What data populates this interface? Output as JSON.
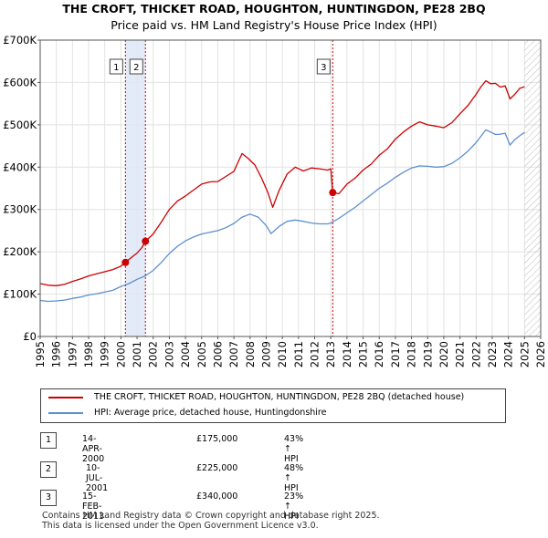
{
  "chart_data": {
    "type": "line",
    "title": "THE CROFT, THICKET ROAD, HOUGHTON, HUNTINGDON, PE28 2BQ",
    "subtitle": "Price paid vs. HM Land Registry's House Price Index (HPI)",
    "xlim": [
      1995,
      2026
    ],
    "ylim": [
      0,
      700000
    ],
    "x_ticks": [
      1995,
      1996,
      1997,
      1998,
      1999,
      2000,
      2001,
      2002,
      2003,
      2004,
      2005,
      2006,
      2007,
      2008,
      2009,
      2010,
      2011,
      2012,
      2013,
      2014,
      2015,
      2016,
      2017,
      2018,
      2019,
      2020,
      2021,
      2022,
      2023,
      2024,
      2025,
      2026
    ],
    "y_ticks": [
      {
        "value": 0,
        "label": "£0"
      },
      {
        "value": 100000,
        "label": "£100K"
      },
      {
        "value": 200000,
        "label": "£200K"
      },
      {
        "value": 300000,
        "label": "£300K"
      },
      {
        "value": 400000,
        "label": "£400K"
      },
      {
        "value": 500000,
        "label": "£500K"
      },
      {
        "value": 600000,
        "label": "£600K"
      },
      {
        "value": 700000,
        "label": "£700K"
      }
    ],
    "grid": true,
    "series": [
      {
        "name": "THE CROFT, THICKET ROAD, HOUGHTON, HUNTINGDON, PE28 2BQ (detached house)",
        "color": "#cc0000",
        "x": [
          1995.0,
          1995.5,
          1996.0,
          1996.5,
          1997.0,
          1997.5,
          1998.0,
          1998.5,
          1999.0,
          1999.5,
          2000.0,
          2000.28,
          2000.5,
          2001.0,
          2001.3,
          2001.52,
          2002.0,
          2002.5,
          2003.0,
          2003.5,
          2004.0,
          2004.5,
          2005.0,
          2005.5,
          2006.0,
          2006.5,
          2007.0,
          2007.5,
          2007.9,
          2008.3,
          2008.7,
          2009.1,
          2009.4,
          2009.8,
          2010.3,
          2010.8,
          2011.3,
          2011.8,
          2012.3,
          2012.8,
          2013.0,
          2013.12,
          2013.5,
          2014.0,
          2014.5,
          2015.0,
          2015.5,
          2016.0,
          2016.5,
          2017.0,
          2017.5,
          2018.0,
          2018.5,
          2019.0,
          2019.5,
          2020.0,
          2020.5,
          2021.0,
          2021.5,
          2022.0,
          2022.3,
          2022.6,
          2022.9,
          2023.2,
          2023.5,
          2023.8,
          2024.1,
          2024.4,
          2024.7,
          2025.0
        ],
        "values": [
          125000,
          121000,
          120000,
          123000,
          130000,
          136000,
          143000,
          148000,
          153000,
          158000,
          166000,
          175000,
          182000,
          197000,
          210000,
          225000,
          242000,
          270000,
          300000,
          320000,
          332000,
          346000,
          360000,
          365000,
          366000,
          378000,
          390000,
          432000,
          420000,
          405000,
          375000,
          340000,
          305000,
          345000,
          384000,
          400000,
          391000,
          398000,
          396000,
          393000,
          396000,
          340000,
          337000,
          360000,
          374000,
          393000,
          407000,
          428000,
          443000,
          466000,
          483000,
          497000,
          507000,
          500000,
          497000,
          493000,
          505000,
          526000,
          546000,
          572000,
          590000,
          604000,
          597000,
          598000,
          589000,
          592000,
          561000,
          572000,
          586000,
          590000
        ]
      },
      {
        "name": "HPI: Average price, detached house, Huntingdonshire",
        "color": "#5b8fd0",
        "x": [
          1995.0,
          1995.5,
          1996.0,
          1996.5,
          1997.0,
          1997.5,
          1998.0,
          1998.5,
          1999.0,
          1999.5,
          2000.0,
          2000.5,
          2001.0,
          2001.5,
          2002.0,
          2002.5,
          2003.0,
          2003.5,
          2004.0,
          2004.5,
          2005.0,
          2005.5,
          2006.0,
          2006.5,
          2007.0,
          2007.5,
          2008.0,
          2008.5,
          2009.0,
          2009.3,
          2009.8,
          2010.3,
          2010.8,
          2011.3,
          2011.8,
          2012.3,
          2012.8,
          2013.0,
          2013.5,
          2014.0,
          2014.5,
          2015.0,
          2015.5,
          2016.0,
          2016.5,
          2017.0,
          2017.5,
          2018.0,
          2018.5,
          2019.0,
          2019.5,
          2020.0,
          2020.5,
          2021.0,
          2021.5,
          2022.0,
          2022.3,
          2022.6,
          2022.9,
          2023.2,
          2023.5,
          2023.8,
          2024.1,
          2024.4,
          2024.7,
          2025.0
        ],
        "values": [
          85000,
          83000,
          84000,
          86000,
          90000,
          93000,
          98000,
          101000,
          105000,
          109000,
          118000,
          125000,
          135000,
          143000,
          156000,
          175000,
          196000,
          213000,
          226000,
          235000,
          242000,
          246000,
          250000,
          257000,
          267000,
          282000,
          289000,
          282000,
          262000,
          243000,
          260000,
          272000,
          275000,
          272000,
          268000,
          266000,
          266000,
          268000,
          279000,
          292000,
          305000,
          320000,
          335000,
          350000,
          362000,
          376000,
          388000,
          398000,
          403000,
          402000,
          400000,
          401000,
          409000,
          422000,
          438000,
          458000,
          473000,
          488000,
          483000,
          477000,
          478000,
          480000,
          452000,
          465000,
          474000,
          482000
        ]
      }
    ],
    "transactions": [
      {
        "num": "1",
        "x": 2000.28,
        "value": 175000
      },
      {
        "num": "2",
        "x": 2001.52,
        "value": 225000
      },
      {
        "num": "3",
        "x": 2013.12,
        "value": 340000
      }
    ],
    "shaded_span": [
      2000.28,
      2001.52
    ],
    "future_hatch_from": 2025.0
  },
  "legend": {
    "property_label": "THE CROFT, THICKET ROAD, HOUGHTON, HUNTINGDON, PE28 2BQ (detached house)",
    "hpi_label": "HPI: Average price, detached house, Huntingdonshire",
    "property_color": "#cc0000",
    "hpi_color": "#5b8fd0"
  },
  "transactions_table": [
    {
      "num": "1",
      "date": "14-APR-2000",
      "price": "£175,000",
      "hpi": "43% ↑ HPI"
    },
    {
      "num": "2",
      "date": "10-JUL-2001",
      "price": "£225,000",
      "hpi": "48% ↑ HPI"
    },
    {
      "num": "3",
      "date": "15-FEB-2013",
      "price": "£340,000",
      "hpi": "23% ↑ HPI"
    }
  ],
  "footer": {
    "line1": "Contains HM Land Registry data © Crown copyright and database right 2025.",
    "line2": "This data is licensed under the Open Government Licence v3.0."
  }
}
